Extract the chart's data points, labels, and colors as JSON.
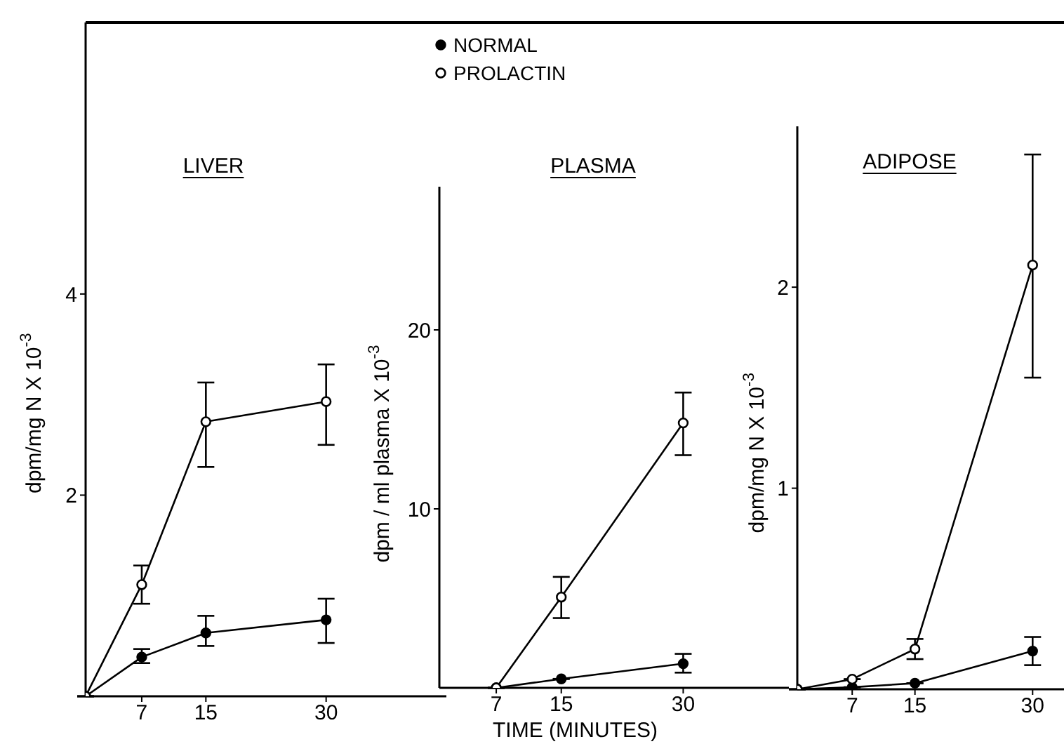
{
  "chart_data": [
    {
      "type": "line",
      "title": "LIVER",
      "ylabel": "dpm/mg N X 10$^{-3}$",
      "x": [
        0,
        7,
        15,
        30
      ],
      "xlim": [
        0,
        45
      ],
      "xticks": [
        7,
        15,
        30
      ],
      "ylim": [
        0,
        6.7
      ],
      "yticks": [
        2,
        4
      ],
      "marker": "circle",
      "series": [
        {
          "color": "#000000",
          "values": [
            0,
            0.39,
            0.63,
            0.76
          ],
          "errors": [
            null,
            [
              0.33,
              0.47
            ],
            [
              0.5,
              0.8
            ],
            [
              0.53,
              0.97
            ]
          ]
        },
        {
          "color": "#000000",
          "values": [
            0,
            1.11,
            2.73,
            2.93
          ],
          "errors": [
            null,
            [
              0.92,
              1.3
            ],
            [
              2.28,
              3.12
            ],
            [
              2.5,
              3.3
            ]
          ]
        }
      ]
    },
    {
      "type": "line",
      "title": "PLASMA",
      "xlabel": "TIME (MINUTES)",
      "ylabel": "dpm / ml plasma X 10$^{-3}$",
      "legend": "top",
      "x": [
        7,
        15,
        30
      ],
      "xlim": [
        0,
        43
      ],
      "xticks": [
        7,
        15,
        30
      ],
      "ylim": [
        0,
        28
      ],
      "yticks": [
        10,
        20
      ],
      "marker": "circle",
      "series": [
        {
          "name": "NORMAL",
          "color": "#000000",
          "values": [
            0,
            0.5,
            1.35
          ],
          "errors": [
            null,
            null,
            [
              0.85,
              1.9
            ]
          ]
        },
        {
          "name": "PROLACTIN",
          "color": "#000000",
          "values": [
            0,
            5.07,
            14.8
          ],
          "errors": [
            null,
            [
              3.9,
              6.2
            ],
            [
              13.0,
              16.5
            ]
          ]
        }
      ]
    },
    {
      "type": "line",
      "title": "ADIPOSE",
      "ylabel": "dpm/mg N X 10$^{-3}$",
      "x": [
        0,
        7,
        15,
        30
      ],
      "xlim": [
        0,
        34
      ],
      "xticks": [
        7,
        15,
        30
      ],
      "ylim": [
        0,
        2.8
      ],
      "yticks": [
        1,
        2
      ],
      "marker": "circle",
      "series": [
        {
          "color": "#000000",
          "values": [
            0,
            0.01,
            0.03,
            0.19
          ],
          "errors": [
            null,
            null,
            null,
            [
              0.12,
              0.26
            ]
          ]
        },
        {
          "color": "#000000",
          "values": [
            0,
            0.05,
            0.2,
            2.11
          ],
          "errors": [
            null,
            null,
            [
              0.15,
              0.25
            ],
            [
              1.55,
              2.66
            ]
          ]
        }
      ]
    }
  ]
}
